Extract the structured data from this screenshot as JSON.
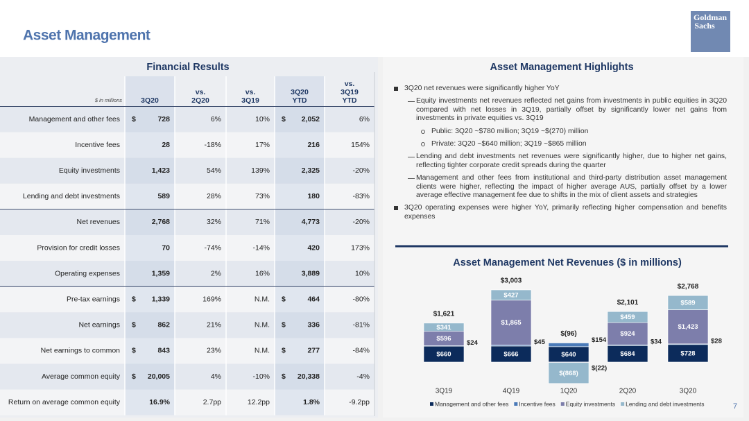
{
  "header": {
    "title": "Asset Management",
    "logo": [
      "Goldman",
      "Sachs"
    ],
    "page_number": "7"
  },
  "table": {
    "title": "Financial Results",
    "unit_note": "$ in millions",
    "columns": [
      [
        "3Q20"
      ],
      [
        "vs.",
        "2Q20"
      ],
      [
        "vs.",
        "3Q19"
      ],
      [
        "3Q20",
        "YTD"
      ],
      [
        "vs.",
        "3Q19",
        "YTD"
      ]
    ],
    "rows": [
      {
        "label": "Management and other fees",
        "currency": "$",
        "values": [
          "728",
          "6%",
          "10%",
          "2,052",
          "6%"
        ]
      },
      {
        "label": "Incentive fees",
        "values": [
          "28",
          "-18%",
          "17%",
          "216",
          "154%"
        ]
      },
      {
        "label": "Equity investments",
        "values": [
          "1,423",
          "54%",
          "139%",
          "2,325",
          "-20%"
        ]
      },
      {
        "label": "Lending and debt investments",
        "values": [
          "589",
          "28%",
          "73%",
          "180",
          "-83%"
        ]
      },
      {
        "label": "Net revenues",
        "values": [
          "2,768",
          "32%",
          "71%",
          "4,773",
          "-20%"
        ]
      },
      {
        "label": "Provision for credit losses",
        "values": [
          "70",
          "-74%",
          "-14%",
          "420",
          "173%"
        ]
      },
      {
        "label": "Operating expenses",
        "values": [
          "1,359",
          "2%",
          "16%",
          "3,889",
          "10%"
        ]
      },
      {
        "label": "Pre-tax earnings",
        "currency": "$",
        "values": [
          "1,339",
          "169%",
          "N.M.",
          "464",
          "-80%"
        ]
      },
      {
        "label": "Net earnings",
        "currency": "$",
        "values": [
          "862",
          "21%",
          "N.M.",
          "336",
          "-81%"
        ]
      },
      {
        "label": "Net earnings to common",
        "currency": "$",
        "values": [
          "843",
          "23%",
          "N.M.",
          "277",
          "-84%"
        ]
      },
      {
        "label": "Average common equity",
        "currency": "$",
        "values": [
          "20,005",
          "4%",
          "-10%",
          "20,338",
          "-4%"
        ]
      },
      {
        "label": "Return on average common equity",
        "values": [
          "16.9%",
          "2.7pp",
          "12.2pp",
          "1.8%",
          "-9.2pp"
        ]
      }
    ]
  },
  "highlights": {
    "title": "Asset Management Highlights",
    "items": [
      {
        "level": 1,
        "text": "3Q20 net revenues were significantly higher YoY"
      },
      {
        "level": 2,
        "text": "Equity investments net revenues reflected net gains from investments in public equities in 3Q20 compared with net losses in 3Q19, partially offset by significantly lower net gains from investments in private equities vs. 3Q19"
      },
      {
        "level": 3,
        "text": "Public: 3Q20 ~$780 million; 3Q19 ~$(270) million"
      },
      {
        "level": 3,
        "text": "Private: 3Q20 ~$640 million; 3Q19 ~$865 million"
      },
      {
        "level": 2,
        "text": "Lending and debt investments net revenues were significantly higher, due to higher net gains, reflecting tighter corporate credit spreads during the quarter"
      },
      {
        "level": 2,
        "text": "Management and other fees from institutional and third-party distribution asset management clients were higher, reflecting the impact of higher average AUS, partially offset by a lower average effective management fee due to shifts in the mix of client assets and strategies"
      },
      {
        "level": 1,
        "text": "3Q20 operating expenses were higher YoY, primarily reflecting higher compensation and benefits expenses"
      }
    ]
  },
  "chart_data": {
    "type": "stacked_bar",
    "title": "Asset Management Net Revenues ($ in millions)",
    "categories": [
      "3Q19",
      "4Q19",
      "1Q20",
      "2Q20",
      "3Q20"
    ],
    "series": [
      {
        "name": "Management and other fees",
        "color": "#0c2b5b",
        "values": [
          660,
          666,
          640,
          684,
          728
        ],
        "value_labels": [
          "$660",
          "$666",
          "$640",
          "$684",
          "$728"
        ]
      },
      {
        "name": "Incentive fees",
        "color": "#4a7ab8",
        "values": [
          24,
          45,
          154,
          34,
          28
        ],
        "value_labels": [
          "$24",
          "$45",
          "$154",
          "$34",
          "$28"
        ]
      },
      {
        "name": "Equity investments",
        "color": "#7d7eab",
        "values": [
          596,
          1865,
          -22,
          924,
          1423
        ],
        "value_labels": [
          "$596",
          "$1,865",
          "$(22)",
          "$924",
          "$1,423"
        ]
      },
      {
        "name": "Lending and debt investments",
        "color": "#95b8cc",
        "values": [
          341,
          427,
          -868,
          459,
          589
        ],
        "value_labels": [
          "$341",
          "$427",
          "$(868)",
          "$459",
          "$589"
        ]
      }
    ],
    "totals": {
      "values": [
        1621,
        3003,
        -96,
        2101,
        2768
      ],
      "value_labels": [
        "$1,621",
        "$3,003",
        "$(96)",
        "$2,101",
        "$2,768"
      ]
    }
  }
}
